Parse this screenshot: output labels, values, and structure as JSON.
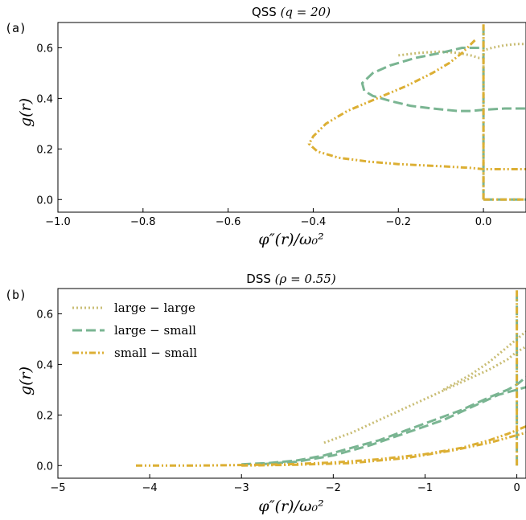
{
  "chart_data": [
    {
      "type": "line",
      "panel_label": "(a)",
      "title_text": "QSS ",
      "title_math": "(q = 20)",
      "xlabel": "φ″(r)/ω₀²",
      "ylabel": "g(r)",
      "xlim": [
        -1.0,
        0.1
      ],
      "ylim": [
        -0.05,
        0.7
      ],
      "x_ticks": [
        -1.0,
        -0.8,
        -0.6,
        -0.4,
        -0.2,
        0.0
      ],
      "x_tick_labels": [
        "−1.0",
        "−0.8",
        "−0.6",
        "−0.4",
        "−0.2",
        "0.0"
      ],
      "y_ticks": [
        0.0,
        0.2,
        0.4,
        0.6
      ],
      "y_tick_labels": [
        "0.0",
        "0.2",
        "0.4",
        "0.6"
      ],
      "series": [
        {
          "color": "#c9bd74",
          "dash": "dotted",
          "points": [
            [
              -0.2,
              0.57
            ],
            [
              -0.15,
              0.58
            ],
            [
              -0.1,
              0.585
            ],
            [
              -0.06,
              0.58
            ],
            [
              -0.03,
              0.57
            ],
            [
              -0.01,
              0.56
            ],
            [
              0.0,
              0.56
            ],
            [
              0.0,
              0.59
            ],
            [
              0.02,
              0.6
            ],
            [
              0.05,
              0.61
            ],
            [
              0.08,
              0.615
            ],
            [
              0.1,
              0.615
            ]
          ]
        },
        {
          "color": "#c9bd74",
          "dash": "dotted",
          "points": [
            [
              0.0,
              0.0
            ],
            [
              0.0,
              0.7
            ]
          ]
        },
        {
          "color": "#7ab592",
          "dash": "dashed",
          "points": [
            [
              -0.01,
              0.6
            ],
            [
              -0.05,
              0.6
            ],
            [
              -0.1,
              0.58
            ],
            [
              -0.16,
              0.56
            ],
            [
              -0.22,
              0.53
            ],
            [
              -0.26,
              0.5
            ],
            [
              -0.285,
              0.46
            ],
            [
              -0.28,
              0.43
            ],
            [
              -0.26,
              0.41
            ],
            [
              -0.22,
              0.39
            ],
            [
              -0.17,
              0.37
            ],
            [
              -0.12,
              0.36
            ],
            [
              -0.06,
              0.35
            ],
            [
              -0.03,
              0.35
            ],
            [
              0.0,
              0.355
            ],
            [
              0.05,
              0.36
            ],
            [
              0.1,
              0.36
            ]
          ]
        },
        {
          "color": "#7ab592",
          "dash": "dashed",
          "points": [
            [
              0.0,
              0.0
            ],
            [
              0.0,
              0.0
            ],
            [
              0.1,
              0.0
            ]
          ]
        },
        {
          "color": "#7ab592",
          "dash": "dashed",
          "points": [
            [
              0.0,
              0.0
            ],
            [
              0.0,
              0.68
            ]
          ]
        },
        {
          "color": "#dcaf34",
          "dash": "dashdot",
          "points": [
            [
              -0.02,
              0.63
            ],
            [
              -0.05,
              0.58
            ],
            [
              -0.08,
              0.54
            ],
            [
              -0.12,
              0.5
            ],
            [
              -0.18,
              0.45
            ],
            [
              -0.25,
              0.4
            ],
            [
              -0.32,
              0.35
            ],
            [
              -0.37,
              0.3
            ],
            [
              -0.4,
              0.25
            ],
            [
              -0.41,
              0.22
            ],
            [
              -0.39,
              0.19
            ],
            [
              -0.34,
              0.165
            ],
            [
              -0.27,
              0.15
            ],
            [
              -0.2,
              0.14
            ],
            [
              -0.14,
              0.135
            ],
            [
              -0.08,
              0.13
            ],
            [
              -0.03,
              0.125
            ],
            [
              0.0,
              0.12
            ],
            [
              0.05,
              0.12
            ],
            [
              0.1,
              0.12
            ]
          ]
        },
        {
          "color": "#dcaf34",
          "dash": "dashdot",
          "points": [
            [
              0.0,
              0.0
            ],
            [
              0.0,
              0.7
            ]
          ]
        },
        {
          "color": "#dcaf34",
          "dash": "dashdot",
          "points": [
            [
              0.0,
              0.0
            ],
            [
              0.1,
              0.0
            ]
          ]
        }
      ]
    },
    {
      "type": "line",
      "panel_label": "(b)",
      "title_text": "DSS ",
      "title_math": "(ρ = 0.55)",
      "xlabel": "φ″(r)/ω₀²",
      "ylabel": "g(r)",
      "xlim": [
        -5,
        0.1
      ],
      "ylim": [
        -0.05,
        0.7
      ],
      "x_ticks": [
        -5,
        -4,
        -3,
        -2,
        -1,
        0
      ],
      "x_tick_labels": [
        "−5",
        "−4",
        "−3",
        "−2",
        "−1",
        "0"
      ],
      "y_ticks": [
        0.0,
        0.2,
        0.4,
        0.6
      ],
      "y_tick_labels": [
        "0.0",
        "0.2",
        "0.4",
        "0.6"
      ],
      "legend": {
        "placement": "upper-left",
        "entries": [
          {
            "label": "large − large",
            "color": "#c9bd74",
            "dash": "dotted"
          },
          {
            "label": "large − small",
            "color": "#7ab592",
            "dash": "dashed"
          },
          {
            "label": "small − small",
            "color": "#dcaf34",
            "dash": "dashdot"
          }
        ]
      },
      "series": [
        {
          "color": "#c9bd74",
          "dash": "dotted",
          "points": [
            [
              -2.1,
              0.09
            ],
            [
              -1.8,
              0.13
            ],
            [
              -1.5,
              0.18
            ],
            [
              -1.2,
              0.23
            ],
            [
              -0.9,
              0.28
            ],
            [
              -0.6,
              0.33
            ],
            [
              -0.3,
              0.38
            ],
            [
              -0.1,
              0.42
            ],
            [
              0.0,
              0.45
            ],
            [
              0.1,
              0.47
            ]
          ]
        },
        {
          "color": "#c9bd74",
          "dash": "dotted",
          "points": [
            [
              -0.8,
              0.3
            ],
            [
              -0.5,
              0.36
            ],
            [
              -0.3,
              0.41
            ],
            [
              -0.1,
              0.47
            ],
            [
              0.0,
              0.5
            ],
            [
              0.1,
              0.53
            ]
          ]
        },
        {
          "color": "#7ab592",
          "dash": "dashed",
          "points": [
            [
              -3.0,
              0.005
            ],
            [
              -2.7,
              0.01
            ],
            [
              -2.4,
              0.02
            ],
            [
              -2.1,
              0.04
            ],
            [
              -1.8,
              0.07
            ],
            [
              -1.5,
              0.1
            ],
            [
              -1.2,
              0.14
            ],
            [
              -0.9,
              0.18
            ],
            [
              -0.6,
              0.22
            ],
            [
              -0.3,
              0.27
            ],
            [
              -0.1,
              0.3
            ],
            [
              0.0,
              0.32
            ],
            [
              0.1,
              0.35
            ]
          ]
        },
        {
          "color": "#7ab592",
          "dash": "dashed",
          "points": [
            [
              -2.8,
              0.005
            ],
            [
              -2.4,
              0.015
            ],
            [
              -2.0,
              0.04
            ],
            [
              -1.6,
              0.08
            ],
            [
              -1.2,
              0.13
            ],
            [
              -0.8,
              0.18
            ],
            [
              -0.5,
              0.23
            ],
            [
              -0.2,
              0.28
            ],
            [
              0.0,
              0.3
            ],
            [
              0.1,
              0.31
            ]
          ]
        },
        {
          "color": "#7ab592",
          "dash": "dashed",
          "points": [
            [
              0.0,
              0.0
            ],
            [
              0.0,
              0.67
            ]
          ]
        },
        {
          "color": "#dcaf34",
          "dash": "dashdot",
          "points": [
            [
              -4.15,
              0.0
            ],
            [
              -3.5,
              0.0
            ],
            [
              -3.0,
              0.002
            ],
            [
              -2.5,
              0.005
            ],
            [
              -2.0,
              0.012
            ],
            [
              -1.5,
              0.025
            ],
            [
              -1.0,
              0.045
            ],
            [
              -0.6,
              0.07
            ],
            [
              -0.3,
              0.1
            ],
            [
              -0.1,
              0.125
            ],
            [
              0.0,
              0.14
            ],
            [
              0.1,
              0.155
            ]
          ]
        },
        {
          "color": "#dcaf34",
          "dash": "dashdot",
          "points": [
            [
              -3.0,
              0.0
            ],
            [
              -2.4,
              0.003
            ],
            [
              -1.8,
              0.01
            ],
            [
              -1.2,
              0.03
            ],
            [
              -0.7,
              0.06
            ],
            [
              -0.3,
              0.09
            ],
            [
              0.0,
              0.12
            ],
            [
              0.1,
              0.13
            ]
          ]
        },
        {
          "color": "#dcaf34",
          "dash": "dashdot",
          "points": [
            [
              0.0,
              0.0
            ],
            [
              0.0,
              0.7
            ]
          ]
        }
      ]
    }
  ]
}
